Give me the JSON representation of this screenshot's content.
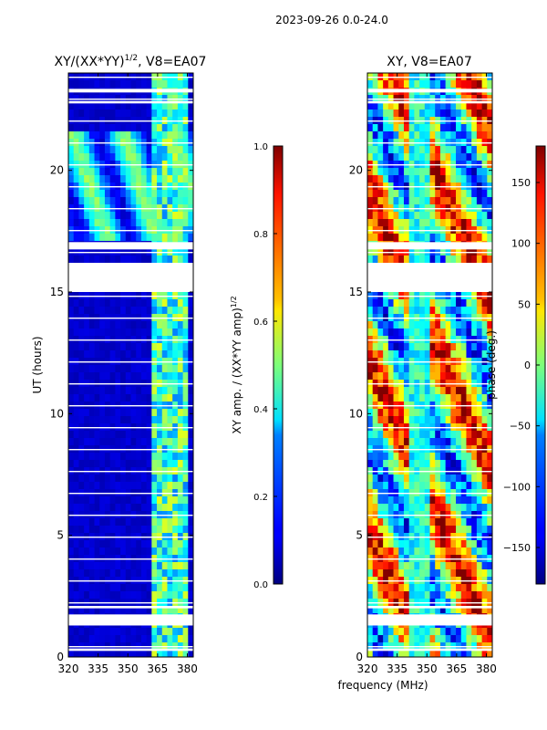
{
  "figure": {
    "suptitle": "2023-09-26 0.0-24.0",
    "xlabel": "frequency (MHz)",
    "ylabel": "UT (hours)"
  },
  "chart_data": [
    {
      "type": "heatmap",
      "title_main": "XY/(XX*YY)",
      "title_sup": "1/2",
      "title_tail": ", V8=EA07",
      "xlabel": "frequency (MHz)",
      "ylabel": "UT (hours)",
      "xlim": [
        320,
        383
      ],
      "ylim": [
        0,
        24
      ],
      "xticks": [
        "320",
        "335",
        "350",
        "365",
        "380"
      ],
      "xtick_values": [
        320,
        335,
        350,
        365,
        380
      ],
      "yticks": [
        "0",
        "5",
        "10",
        "15",
        "20"
      ],
      "ytick_values": [
        0,
        5,
        10,
        15,
        20
      ],
      "colorbar": {
        "label_main": "XY amp. / (XX*YY amp)",
        "label_sup": "1/2",
        "min": 0.0,
        "max": 1.0,
        "ticks": [
          "0.0",
          "0.2",
          "0.4",
          "0.6",
          "0.8",
          "1.0"
        ],
        "tick_values": [
          0.0,
          0.2,
          0.4,
          0.6,
          0.8,
          1.0
        ],
        "colormap": "jet"
      }
    },
    {
      "type": "heatmap",
      "title": "XY, V8=EA07",
      "xlabel": "frequency (MHz)",
      "ylabel": "",
      "xlim": [
        320,
        383
      ],
      "ylim": [
        0,
        24
      ],
      "xticks": [
        "320",
        "335",
        "350",
        "365",
        "380"
      ],
      "xtick_values": [
        320,
        335,
        350,
        365,
        380
      ],
      "yticks": [
        "0",
        "5",
        "10",
        "15",
        "20"
      ],
      "ytick_values": [
        0,
        5,
        10,
        15,
        20
      ],
      "colorbar": {
        "label": "phase (deg.)",
        "min": -180,
        "max": 180,
        "ticks": [
          "-150",
          "-100",
          "-50",
          "0",
          "50",
          "100",
          "150"
        ],
        "tick_values": [
          -150,
          -100,
          -50,
          0,
          50,
          100,
          150
        ],
        "colormap": "jet"
      }
    }
  ]
}
